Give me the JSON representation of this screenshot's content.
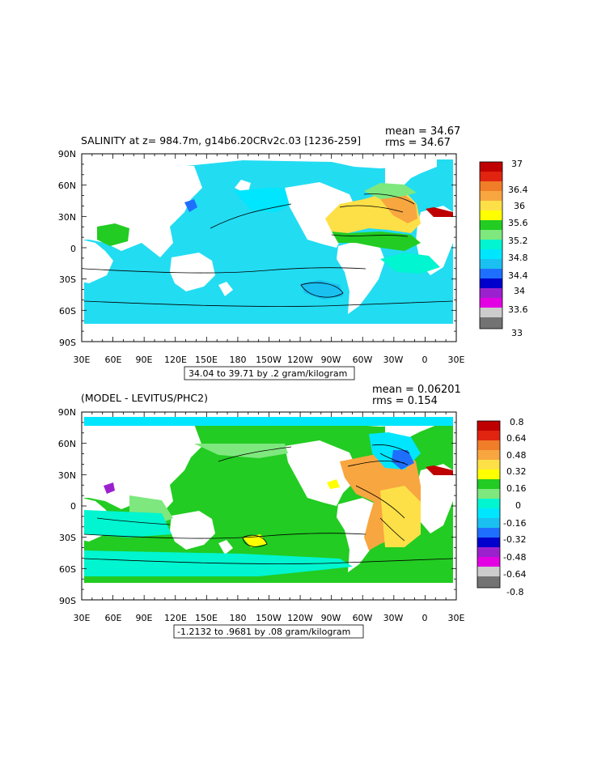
{
  "panels": [
    {
      "title": "SALINITY at z= 984.7m, g14b6.20CRv2c.03 [1236-259]",
      "mean_text": "mean = 34.67",
      "rms_text": "rms = 34.67",
      "range_text": "34.04 to 39.71 by .2 gram/kilogram",
      "lat_labels": [
        "90N",
        "60N",
        "30N",
        "0",
        "30S",
        "60S",
        "90S"
      ],
      "lon_labels": [
        "30E",
        "60E",
        "90E",
        "120E",
        "150E",
        "180",
        "150W",
        "120W",
        "90W",
        "60W",
        "30W",
        "0",
        "30E"
      ],
      "colorbar": {
        "labels": [
          "37",
          "36.4",
          "36",
          "35.6",
          "35.2",
          "34.8",
          "34.4",
          "34",
          "33.6",
          "33"
        ],
        "colors": [
          "#bf0000",
          "#e02410",
          "#f07d28",
          "#f8a640",
          "#fde047",
          "#ffff00",
          "#22cc22",
          "#7ee87e",
          "#00f5d0",
          "#00e6ff",
          "#1ac0f0",
          "#1f6fff",
          "#0000cc",
          "#9b21cf",
          "#e300e3",
          "#cccccc",
          "#737373"
        ]
      }
    },
    {
      "title": "(MODEL - LEVITUS/PHC2)",
      "mean_text": "mean = 0.06201",
      "rms_text": "rms = 0.154",
      "range_text": "-1.2132 to .9681 by .08 gram/kilogram",
      "lat_labels": [
        "90N",
        "60N",
        "30N",
        "0",
        "30S",
        "60S",
        "90S"
      ],
      "lon_labels": [
        "30E",
        "60E",
        "90E",
        "120E",
        "150E",
        "180",
        "150W",
        "120W",
        "90W",
        "60W",
        "30W",
        "0",
        "30E"
      ],
      "colorbar": {
        "labels": [
          "0.8",
          "0.64",
          "0.48",
          "0.32",
          "0.16",
          "0",
          "-0.16",
          "-0.32",
          "-0.48",
          "-0.64",
          "-0.8"
        ],
        "colors": [
          "#bf0000",
          "#e02410",
          "#f07d28",
          "#f8a640",
          "#fde047",
          "#ffff00",
          "#22cc22",
          "#7ee87e",
          "#00f5d0",
          "#00e6ff",
          "#1ac0f0",
          "#1f6fff",
          "#0000cc",
          "#9b21cf",
          "#e300e3",
          "#cccccc",
          "#737373"
        ]
      }
    }
  ]
}
